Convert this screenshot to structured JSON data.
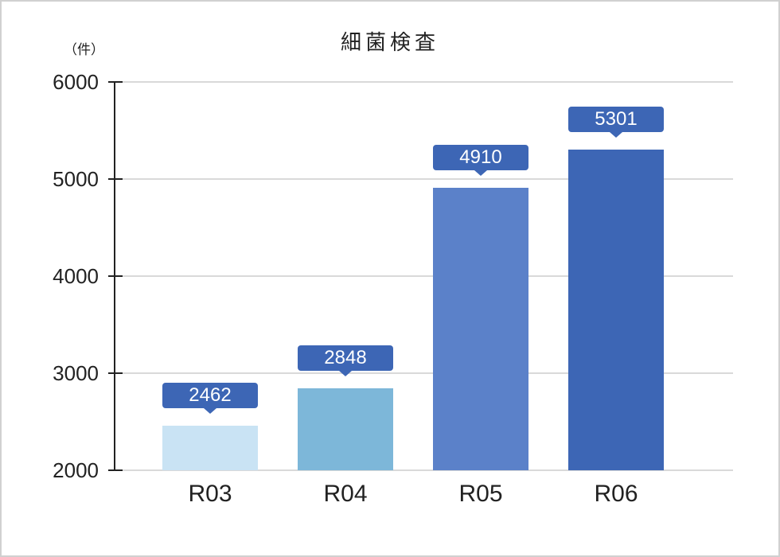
{
  "chart_data": {
    "type": "bar",
    "title": "細菌検査",
    "xlabel": "",
    "ylabel": "（件）",
    "categories": [
      "R03",
      "R04",
      "R05",
      "R06"
    ],
    "values": [
      2462,
      2848,
      4910,
      5301
    ],
    "ylim": [
      2000,
      6000
    ],
    "yticks": [
      2000,
      3000,
      4000,
      5000,
      6000
    ],
    "grid": true,
    "legend": null,
    "bar_colors": [
      "#c9e3f4",
      "#7db7d9",
      "#5b81c9",
      "#3d66b5"
    ],
    "label_box_color": "#3d66b5"
  },
  "labels": {
    "title": "細菌検査",
    "unit": "（件）",
    "yticks": [
      "6000",
      "5000",
      "4000",
      "3000",
      "2000"
    ],
    "bars": [
      {
        "category": "R03",
        "value_label": "2462",
        "color": "#c9e3f4"
      },
      {
        "category": "R04",
        "value_label": "2848",
        "color": "#7db7d9"
      },
      {
        "category": "R05",
        "value_label": "4910",
        "color": "#5b81c9"
      },
      {
        "category": "R06",
        "value_label": "5301",
        "color": "#3d66b5"
      }
    ]
  }
}
